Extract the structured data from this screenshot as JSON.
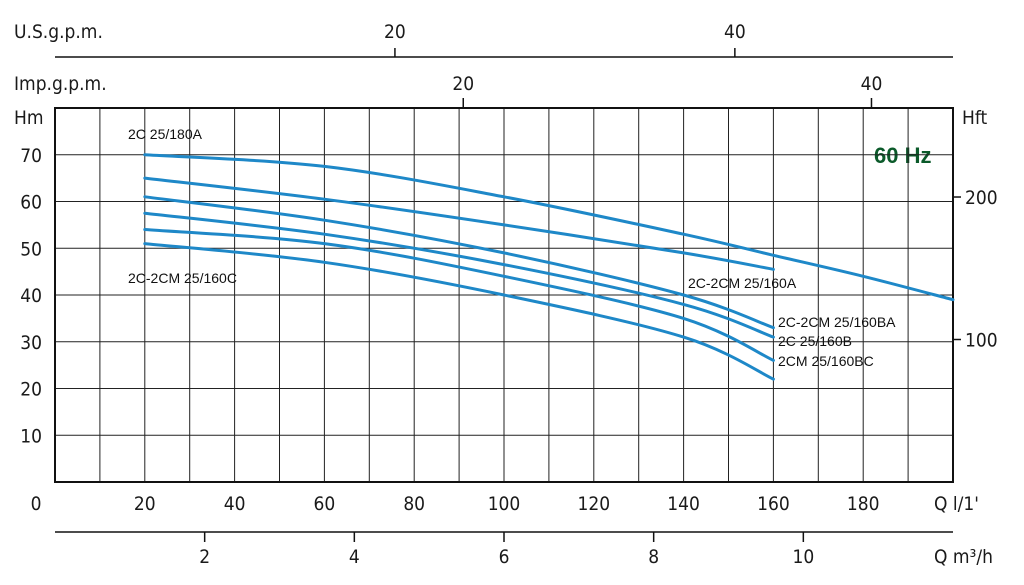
{
  "chart_data": {
    "type": "line",
    "frequency_label": "60 Hz",
    "colors": {
      "curve": "#1e88c8",
      "frequency": "#0b5a2a",
      "grid": "#222222"
    },
    "grid": true,
    "x_primary": {
      "unit": "Q l/1'",
      "range": [
        0,
        200
      ],
      "ticks": [
        0,
        20,
        40,
        60,
        80,
        100,
        120,
        140,
        160,
        180
      ]
    },
    "y_left": {
      "unit": "Hm",
      "range": [
        0,
        80
      ],
      "ticks": [
        10,
        20,
        30,
        40,
        50,
        60,
        70
      ]
    },
    "y_right": {
      "unit": "Hft",
      "ticks": [
        100,
        200
      ]
    },
    "top_axes": [
      {
        "unit": "U.S.g.p.m.",
        "ticks": [
          20,
          40
        ]
      },
      {
        "unit": "Imp.g.p.m.",
        "ticks": [
          20,
          40
        ]
      }
    ],
    "bottom_axis": {
      "unit": "Q m³/h",
      "ticks": [
        2,
        4,
        6,
        8,
        10
      ]
    },
    "series": [
      {
        "name": "2C 25/180A",
        "x": [
          20,
          60,
          100,
          140,
          160,
          180,
          200
        ],
        "y": [
          70,
          67.5,
          61,
          53,
          48.5,
          44,
          39
        ]
      },
      {
        "name": "2C-2CM 25/160A",
        "x": [
          20,
          60,
          100,
          140,
          160
        ],
        "y": [
          65,
          60.5,
          55,
          49,
          45.5
        ]
      },
      {
        "name": "2C-2CM 25/160BA",
        "x": [
          20,
          60,
          100,
          140,
          160
        ],
        "y": [
          61,
          56,
          49,
          40,
          33
        ]
      },
      {
        "name": "2C 25/160B",
        "x": [
          20,
          60,
          100,
          140,
          160
        ],
        "y": [
          57.5,
          53,
          46.5,
          38,
          31
        ]
      },
      {
        "name": "2CM 25/160BC",
        "x": [
          20,
          60,
          100,
          140,
          160
        ],
        "y": [
          54,
          51,
          44,
          35,
          26
        ]
      },
      {
        "name": "2C-2CM 25/160C",
        "x": [
          20,
          60,
          100,
          140,
          160
        ],
        "y": [
          51,
          47,
          40,
          31,
          22
        ]
      }
    ]
  }
}
